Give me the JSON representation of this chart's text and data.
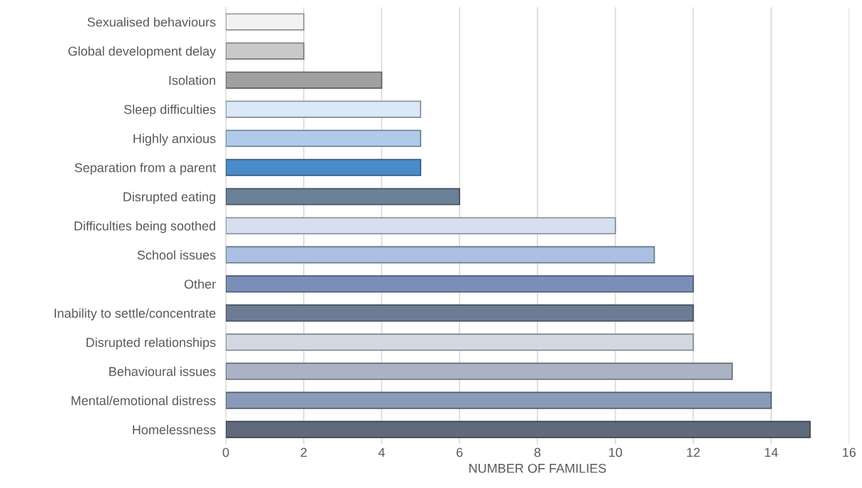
{
  "chart_data": {
    "type": "bar",
    "orientation": "horizontal",
    "xlabel": "NUMBER OF FAMILIES",
    "categories": [
      "Sexualised behaviours",
      "Global development delay",
      "Isolation",
      "Sleep difficulties",
      "Highly anxious",
      "Separation from a parent",
      "Disrupted eating",
      "Difficulties being soothed",
      "School issues",
      "Other",
      "Inability to settle/concentrate",
      "Disrupted relationships",
      "Behavioural issues",
      "Mental/emotional distress",
      "Homelessness"
    ],
    "values": [
      2,
      2,
      4,
      5,
      5,
      5,
      6,
      10,
      11,
      12,
      12,
      12,
      13,
      14,
      15
    ],
    "colors": [
      "#f2f2f2",
      "#c9c9c9",
      "#a0a0a0",
      "#dbe8f6",
      "#aecbeb",
      "#4a8cc8",
      "#6a8099",
      "#d6dff0",
      "#abbfe3",
      "#7a8fb8",
      "#6e7b94",
      "#d2d8e2",
      "#a9b3c3",
      "#8a9bb7",
      "#5f6a7c"
    ],
    "xlim": [
      0,
      16
    ],
    "xticks": [
      0,
      2,
      4,
      6,
      8,
      10,
      12,
      14,
      16
    ],
    "grid": "x"
  }
}
